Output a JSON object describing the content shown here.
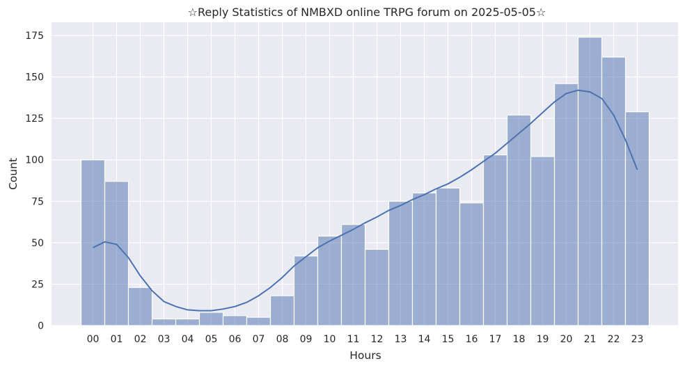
{
  "chart_data": {
    "type": "bar",
    "title": "☆Reply Statistics of NMBXD online TRPG forum on 2025-05-05☆",
    "xlabel": "Hours",
    "ylabel": "Count",
    "categories": [
      "00",
      "01",
      "02",
      "03",
      "04",
      "05",
      "06",
      "07",
      "08",
      "09",
      "10",
      "11",
      "12",
      "13",
      "14",
      "15",
      "16",
      "17",
      "18",
      "19",
      "20",
      "21",
      "22",
      "23"
    ],
    "values": [
      100,
      87,
      23,
      4,
      4,
      8,
      6,
      5,
      18,
      42,
      54,
      61,
      46,
      75,
      80,
      83,
      74,
      103,
      127,
      102,
      146,
      174,
      162,
      129
    ],
    "ylim": [
      0,
      183
    ],
    "yticks": [
      0,
      25,
      50,
      75,
      100,
      125,
      150,
      175
    ],
    "kde": {
      "x": [
        0,
        0.5,
        1,
        1.5,
        2,
        2.5,
        3,
        3.5,
        4,
        4.5,
        5,
        5.5,
        6,
        6.5,
        7,
        7.5,
        8,
        8.5,
        9,
        9.5,
        10,
        10.5,
        11,
        11.5,
        12,
        12.5,
        13,
        13.5,
        14,
        14.5,
        15,
        15.5,
        16,
        16.5,
        17,
        17.5,
        18,
        18.5,
        19,
        19.5,
        20,
        20.5,
        21,
        21.5,
        22,
        22.5,
        23
      ],
      "y": [
        47,
        50.5,
        49,
        41,
        30,
        21,
        14.5,
        11.5,
        9.5,
        9,
        9,
        10,
        11.5,
        14,
        18,
        23,
        29,
        36,
        41.5,
        47,
        51,
        54.5,
        58,
        62,
        65.5,
        69.5,
        72.5,
        76,
        79,
        82.5,
        85.5,
        89.5,
        94,
        99,
        104,
        110,
        116,
        122,
        128.5,
        135,
        140,
        142,
        141,
        137,
        127,
        112,
        94
      ]
    },
    "bar_color": "#4c72b0",
    "line_color": "#4c72b0",
    "grid": true,
    "legend": "none"
  }
}
